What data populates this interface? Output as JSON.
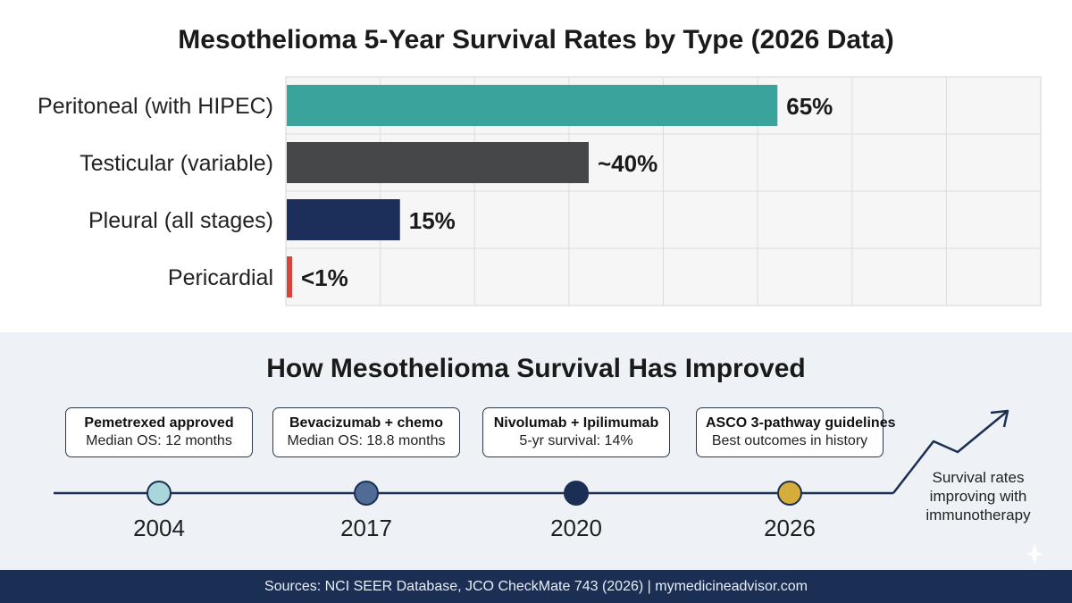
{
  "chart_data": {
    "type": "bar",
    "orientation": "horizontal",
    "title": "Mesothelioma 5-Year Survival Rates by Type (2026 Data)",
    "categories": [
      "Peritoneal (with HIPEC)",
      "Testicular (variable)",
      "Pleural (all stages)",
      "Pericardial"
    ],
    "values": [
      65,
      40,
      15,
      0.5
    ],
    "data_labels": [
      "65%",
      "~40%",
      "15%",
      "<1%"
    ],
    "colors": [
      "#3aa39c",
      "#454748",
      "#1b2f5a",
      "#d9443a"
    ],
    "xlim": [
      0,
      100
    ],
    "grid": true
  },
  "timeline": {
    "title": "How Mesothelioma Survival Has Improved",
    "milestones": [
      {
        "year": "2004",
        "title": "Pemetrexed approved",
        "detail": "Median OS: 12 months",
        "color": "#a9d6d8"
      },
      {
        "year": "2017",
        "title": "Bevacizumab + chemo",
        "detail": "Median OS: 18.8 months",
        "color": "#4f6b96"
      },
      {
        "year": "2020",
        "title": "Nivolumab + Ipilimumab",
        "detail": "5-yr survival: 14%",
        "color": "#1b2f55"
      },
      {
        "year": "2026",
        "title": "ASCO 3-pathway guidelines",
        "detail": "Best outcomes in history",
        "color": "#d6ac3b"
      }
    ],
    "trend_note": "Survival rates improving with immunotherapy"
  },
  "footer": {
    "sources": "Sources: NCI SEER Database, JCO CheckMate 743 (2026) | mymedicineadvisor.com"
  }
}
